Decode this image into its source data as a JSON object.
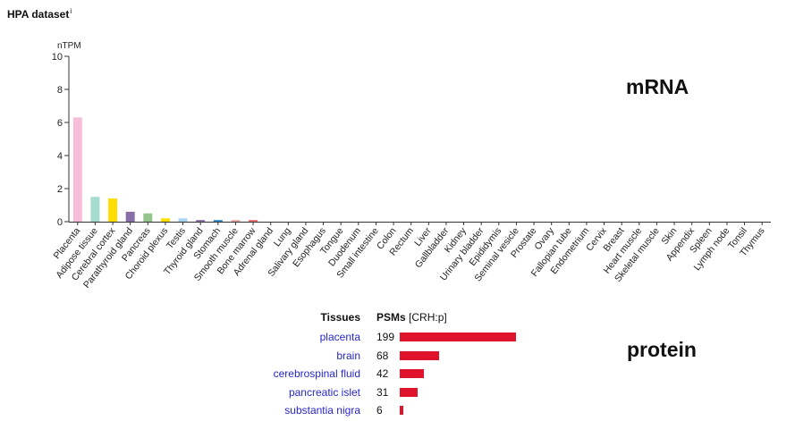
{
  "header": {
    "title": "HPA dataset",
    "info_mark": "i"
  },
  "labels": {
    "mrna": "mRNA",
    "protein": "protein"
  },
  "chart_data": [
    {
      "type": "bar",
      "ylabel": "nTPM",
      "ylim": [
        0,
        10
      ],
      "yticks": [
        0,
        2,
        4,
        6,
        8,
        10
      ],
      "grid": false,
      "categories": [
        "Placenta",
        "Adipose tissue",
        "Cerebral cortex",
        "Parathyroid gland",
        "Pancreas",
        "Choroid plexus",
        "Testis",
        "Thyroid gland",
        "Stomach",
        "Smooth muscle",
        "Bone marrow",
        "Adrenal gland",
        "Lung",
        "Salivary gland",
        "Esophagus",
        "Tongue",
        "Duodenum",
        "Small intestine",
        "Colon",
        "Rectum",
        "Liver",
        "Gallbladder",
        "Kidney",
        "Urinary bladder",
        "Epididymis",
        "Seminal vesicle",
        "Prostate",
        "Ovary",
        "Fallopian tube",
        "Endometrium",
        "Cervix",
        "Breast",
        "Heart muscle",
        "Skeletal muscle",
        "Skin",
        "Appendix",
        "Spleen",
        "Lymph node",
        "Tonsil",
        "Thymus"
      ],
      "values": [
        6.3,
        1.5,
        1.4,
        0.6,
        0.5,
        0.2,
        0.2,
        0.1,
        0.1,
        0.1,
        0.1,
        0,
        0,
        0,
        0,
        0,
        0,
        0,
        0,
        0,
        0,
        0,
        0,
        0,
        0,
        0,
        0,
        0,
        0,
        0,
        0,
        0,
        0,
        0,
        0,
        0,
        0,
        0,
        0,
        0
      ],
      "colors": [
        "#f6bdd9",
        "#a5dccf",
        "#ffdd00",
        "#8a6ea8",
        "#95c58e",
        "#ffdd00",
        "#a8d4f0",
        "#8a6ea8",
        "#2e86c8",
        "#e8a7a7",
        "#e86970",
        "#8a6ea8",
        "#a8d4f0",
        "#95c58e",
        "#95c58e",
        "#95c58e",
        "#95c58e",
        "#95c58e",
        "#95c58e",
        "#95c58e",
        "#95c58e",
        "#95c58e",
        "#e8a7a7",
        "#e8a7a7",
        "#a8d4f0",
        "#a8d4f0",
        "#a8d4f0",
        "#f6bdd9",
        "#f6bdd9",
        "#f6bdd9",
        "#f6bdd9",
        "#f6bdd9",
        "#e86970",
        "#e86970",
        "#e8a7a7",
        "#c7c7c7",
        "#c7c7c7",
        "#c7c7c7",
        "#c7c7c7",
        "#c7c7c7"
      ]
    },
    {
      "type": "bar",
      "orientation": "horizontal",
      "columns": {
        "tissues": "Tissues",
        "psms": "PSMs",
        "psms_unit": "[CRH:p]"
      },
      "categories": [
        "placenta",
        "brain",
        "cerebrospinal fluid",
        "pancreatic islet",
        "substantia nigra"
      ],
      "values": [
        199,
        68,
        42,
        31,
        6
      ],
      "bar_color": "#e0132c"
    }
  ]
}
